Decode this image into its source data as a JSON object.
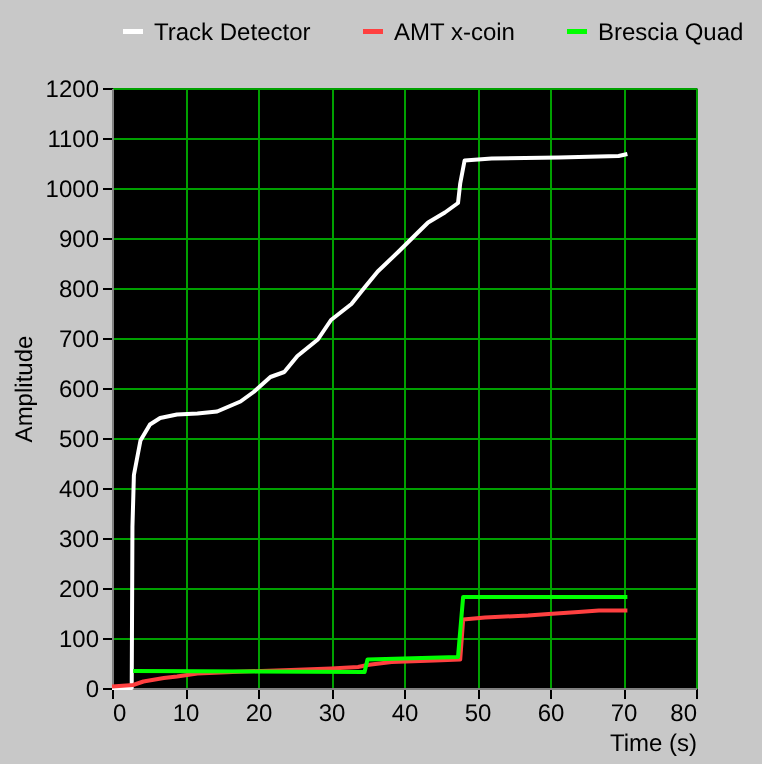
{
  "chart_data": {
    "type": "line",
    "xlabel": "Time (s)",
    "ylabel": "Amplitude",
    "xlim": [
      0,
      80
    ],
    "ylim": [
      0,
      1200
    ],
    "xticks": [
      0,
      10,
      20,
      30,
      40,
      50,
      60,
      70,
      80
    ],
    "yticks": [
      0,
      100,
      200,
      300,
      400,
      500,
      600,
      700,
      800,
      900,
      1000,
      1100,
      1200
    ],
    "grid": true,
    "legend": "top",
    "marker": "none",
    "line_style": "solid",
    "series": [
      {
        "name": "Track Detector",
        "color": "#ffffff",
        "x": [
          0,
          2.7,
          2.8,
          3.0,
          3.9,
          5.2,
          6.6,
          8.9,
          11.7,
          14.4,
          17.6,
          19.4,
          21.7,
          23.6,
          25.4,
          28.2,
          30,
          32.8,
          34.6,
          36.4,
          39.2,
          41.9,
          43.3,
          45.6,
          47.4,
          47.7,
          48.3,
          52,
          61.2,
          69.4,
          70.6
        ],
        "values": [
          0,
          0,
          322,
          426,
          495,
          527,
          540,
          547,
          549,
          553,
          573,
          592,
          622,
          632,
          664,
          697,
          736,
          768,
          801,
          833,
          872,
          911,
          931,
          951,
          970,
          1009,
          1055,
          1059,
          1061,
          1064,
          1068
        ]
      },
      {
        "name": "AMT x-coin",
        "color": "#ff4040",
        "x": [
          0,
          2.9,
          4.3,
          7.1,
          8.9,
          11.7,
          18.1,
          24.5,
          30,
          33.7,
          35,
          35.5,
          38.3,
          44.2,
          47.7,
          48.1,
          51.1,
          57,
          59.8,
          63.9,
          66.7,
          70.6
        ],
        "values": [
          3,
          6,
          13,
          20,
          23,
          29,
          33,
          36,
          39,
          42,
          46,
          47,
          52,
          55,
          57,
          137,
          141,
          145,
          148,
          152,
          155,
          155
        ]
      },
      {
        "name": "Brescia Quad",
        "color": "#00ff00",
        "x": [
          2.9,
          34.6,
          35,
          47.4,
          48.1,
          70.6
        ],
        "values": [
          34,
          32,
          57,
          62,
          182,
          182
        ]
      }
    ]
  }
}
